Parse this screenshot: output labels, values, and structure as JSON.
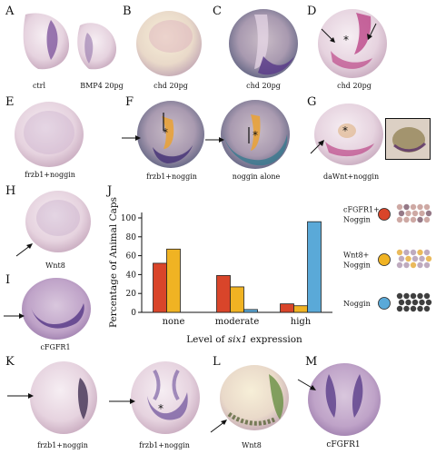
{
  "panels": {
    "A": {
      "letter": "A",
      "captions": [
        "ctrl",
        "BMP4 20pg"
      ]
    },
    "B": {
      "letter": "B",
      "caption": "chd 20pg"
    },
    "C": {
      "letter": "C",
      "caption": "chd 20pg"
    },
    "D": {
      "letter": "D",
      "caption": "chd 20pg"
    },
    "E": {
      "letter": "E",
      "caption": "frzb1+noggin"
    },
    "F": {
      "letter": "F",
      "captions": [
        "frzb1+noggin",
        "noggin alone"
      ]
    },
    "G": {
      "letter": "G",
      "caption": "daWnt+noggin"
    },
    "H": {
      "letter": "H",
      "caption": "Wnt8"
    },
    "I": {
      "letter": "I",
      "caption": "cFGFR1"
    },
    "J": {
      "letter": "J"
    },
    "K": {
      "letter": "K",
      "captions": [
        "frzb1+noggin",
        "frzb1+noggin"
      ]
    },
    "L": {
      "letter": "L",
      "caption": "Wnt8"
    },
    "M": {
      "letter": "M",
      "caption": "cFGFR1"
    }
  },
  "chart_data": {
    "type": "bar",
    "ylabel": "Percentage of Animal Caps",
    "xlabel_prefix": "Level of ",
    "xlabel_gene": "six1",
    "xlabel_suffix": " expression",
    "categories": [
      "none",
      "moderate",
      "high"
    ],
    "ylim": [
      0,
      100
    ],
    "yticks": [
      "0",
      "20",
      "40",
      "60",
      "80",
      "100"
    ],
    "series": [
      {
        "name": "cFGFR1+ Noggin",
        "legend_lines": [
          "cFGFR1+",
          "Noggin"
        ],
        "color": "#d9452a",
        "values": [
          52,
          39,
          9
        ]
      },
      {
        "name": "Wnt8+ Noggin",
        "legend_lines": [
          "Wnt8+",
          "Noggin"
        ],
        "color": "#f0b323",
        "values": [
          67,
          27,
          7
        ]
      },
      {
        "name": "Noggin",
        "legend_lines": [
          "Noggin"
        ],
        "color": "#5aa9d8",
        "values": [
          0,
          3,
          96
        ]
      }
    ]
  },
  "colors": {
    "embryo_light": "#efe3ea",
    "stain_purple": "#6b3f8f",
    "stain_magenta": "#b5307a",
    "stain_orange": "#e8a23a",
    "stain_green": "#5f8a3a"
  }
}
